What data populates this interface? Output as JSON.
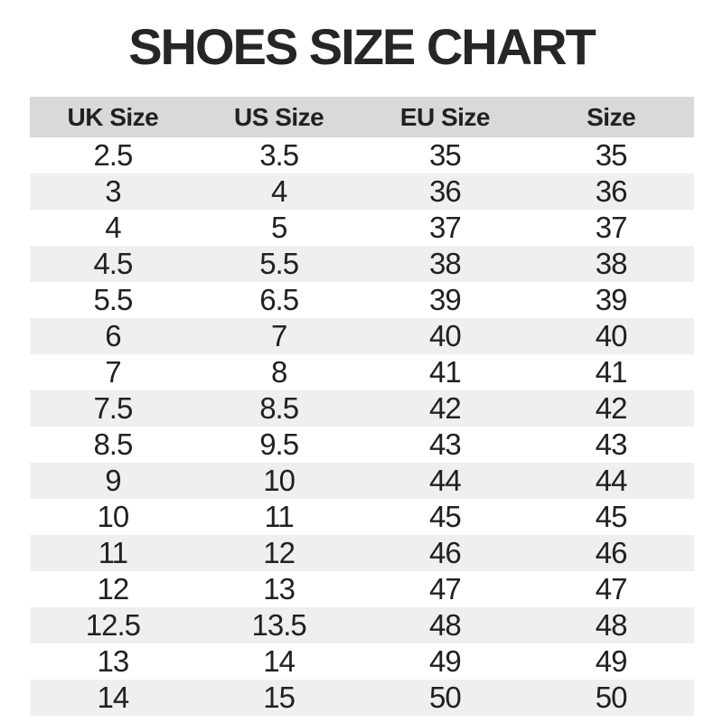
{
  "title": "SHOES SIZE CHART",
  "table": {
    "headers": [
      "UK Size",
      "US Size",
      "EU Size",
      "Size"
    ],
    "rows": [
      [
        "2.5",
        "3.5",
        "35",
        "35"
      ],
      [
        "3",
        "4",
        "36",
        "36"
      ],
      [
        "4",
        "5",
        "37",
        "37"
      ],
      [
        "4.5",
        "5.5",
        "38",
        "38"
      ],
      [
        "5.5",
        "6.5",
        "39",
        "39"
      ],
      [
        "6",
        "7",
        "40",
        "40"
      ],
      [
        "7",
        "8",
        "41",
        "41"
      ],
      [
        "7.5",
        "8.5",
        "42",
        "42"
      ],
      [
        "8.5",
        "9.5",
        "43",
        "43"
      ],
      [
        "9",
        "10",
        "44",
        "44"
      ],
      [
        "10",
        "11",
        "45",
        "45"
      ],
      [
        "11",
        "12",
        "46",
        "46"
      ],
      [
        "12",
        "13",
        "47",
        "47"
      ],
      [
        "12.5",
        "13.5",
        "48",
        "48"
      ],
      [
        "13",
        "14",
        "49",
        "49"
      ],
      [
        "14",
        "15",
        "50",
        "50"
      ]
    ]
  },
  "chart_data": {
    "type": "table",
    "title": "SHOES SIZE CHART",
    "columns": [
      "UK Size",
      "US Size",
      "EU Size",
      "Size"
    ],
    "rows": [
      [
        "2.5",
        "3.5",
        "35",
        "35"
      ],
      [
        "3",
        "4",
        "36",
        "36"
      ],
      [
        "4",
        "5",
        "37",
        "37"
      ],
      [
        "4.5",
        "5.5",
        "38",
        "38"
      ],
      [
        "5.5",
        "6.5",
        "39",
        "39"
      ],
      [
        "6",
        "7",
        "40",
        "40"
      ],
      [
        "7",
        "8",
        "41",
        "41"
      ],
      [
        "7.5",
        "8.5",
        "42",
        "42"
      ],
      [
        "8.5",
        "9.5",
        "43",
        "43"
      ],
      [
        "9",
        "10",
        "44",
        "44"
      ],
      [
        "10",
        "11",
        "45",
        "45"
      ],
      [
        "11",
        "12",
        "46",
        "46"
      ],
      [
        "12",
        "13",
        "47",
        "47"
      ],
      [
        "12.5",
        "13.5",
        "48",
        "48"
      ],
      [
        "13",
        "14",
        "49",
        "49"
      ],
      [
        "14",
        "15",
        "50",
        "50"
      ]
    ],
    "layout_hints": {
      "header_background": "#d9d9d9",
      "alternating_row_background": "#efefef",
      "row_start": "white",
      "grid": "off",
      "alignment": "center"
    }
  },
  "colors": {
    "background": "#ffffff",
    "header_bg": "#d9d9d9",
    "row_alt_bg": "#efefef",
    "text": "#212121",
    "title": "#262626"
  }
}
